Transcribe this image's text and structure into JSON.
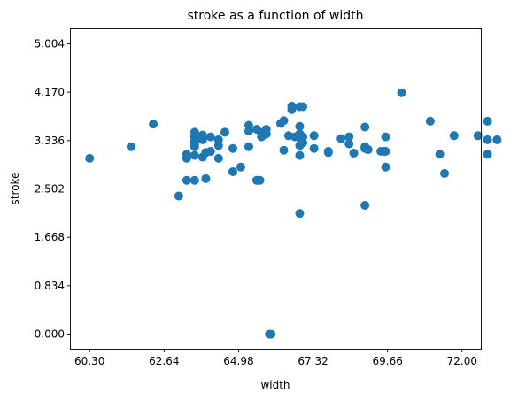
{
  "chart_data": {
    "type": "scatter",
    "title": "stroke as a function of width",
    "xlabel": "width",
    "ylabel": "stroke",
    "xlim": [
      59.71,
      72.59
    ],
    "ylim": [
      -0.2502,
      5.2542
    ],
    "xticks": [
      60.3,
      62.64,
      64.98,
      67.32,
      69.66,
      72.0
    ],
    "xtick_labels": [
      "60.30",
      "62.64",
      "64.98",
      "67.32",
      "69.66",
      "72.00"
    ],
    "yticks": [
      0.0,
      0.834,
      1.668,
      2.502,
      3.336,
      4.17,
      5.004
    ],
    "ytick_labels": [
      "0.000",
      "0.834",
      "1.668",
      "2.502",
      "3.336",
      "4.170",
      "5.004"
    ],
    "grid": false,
    "marker_color": "#1f77b4",
    "points": [
      [
        60.3,
        3.03
      ],
      [
        61.6,
        3.23
      ],
      [
        62.3,
        3.62
      ],
      [
        63.1,
        2.38
      ],
      [
        63.35,
        3.1
      ],
      [
        63.35,
        3.03
      ],
      [
        63.35,
        2.65
      ],
      [
        63.6,
        3.48
      ],
      [
        63.6,
        3.4
      ],
      [
        63.6,
        3.33
      ],
      [
        63.6,
        3.28
      ],
      [
        63.6,
        3.23
      ],
      [
        63.6,
        3.08
      ],
      [
        63.6,
        2.65
      ],
      [
        63.85,
        3.43
      ],
      [
        63.85,
        3.35
      ],
      [
        63.85,
        3.05
      ],
      [
        63.95,
        3.13
      ],
      [
        63.95,
        2.68
      ],
      [
        64.1,
        3.4
      ],
      [
        64.1,
        3.15
      ],
      [
        64.35,
        3.35
      ],
      [
        64.35,
        3.25
      ],
      [
        64.35,
        3.03
      ],
      [
        64.55,
        3.48
      ],
      [
        64.8,
        3.2
      ],
      [
        64.8,
        2.8
      ],
      [
        65.05,
        2.88
      ],
      [
        65.3,
        3.6
      ],
      [
        65.3,
        3.5
      ],
      [
        65.3,
        3.23
      ],
      [
        65.55,
        3.53
      ],
      [
        65.55,
        2.65
      ],
      [
        65.6,
        2.65
      ],
      [
        65.65,
        2.65
      ],
      [
        65.7,
        3.47
      ],
      [
        65.7,
        3.4
      ],
      [
        65.85,
        3.53
      ],
      [
        65.85,
        3.45
      ],
      [
        65.95,
        0.0
      ],
      [
        66.0,
        0.0
      ],
      [
        66.3,
        3.63
      ],
      [
        66.4,
        3.68
      ],
      [
        66.4,
        3.17
      ],
      [
        66.55,
        3.42
      ],
      [
        66.65,
        3.87
      ],
      [
        66.65,
        3.93
      ],
      [
        66.75,
        3.4
      ],
      [
        66.9,
        3.92
      ],
      [
        66.9,
        3.58
      ],
      [
        66.9,
        3.45
      ],
      [
        66.9,
        3.38
      ],
      [
        66.9,
        3.25
      ],
      [
        66.9,
        3.08
      ],
      [
        66.9,
        2.08
      ],
      [
        67.0,
        3.92
      ],
      [
        67.0,
        3.4
      ],
      [
        67.0,
        3.3
      ],
      [
        67.35,
        3.42
      ],
      [
        67.35,
        3.2
      ],
      [
        67.8,
        3.15
      ],
      [
        67.8,
        3.13
      ],
      [
        68.2,
        3.37
      ],
      [
        68.45,
        3.4
      ],
      [
        68.45,
        3.28
      ],
      [
        68.6,
        3.12
      ],
      [
        68.95,
        3.23
      ],
      [
        68.95,
        3.57
      ],
      [
        68.95,
        3.2
      ],
      [
        68.95,
        2.22
      ],
      [
        69.05,
        3.18
      ],
      [
        69.45,
        3.15
      ],
      [
        69.55,
        3.15
      ],
      [
        69.6,
        3.4
      ],
      [
        69.6,
        3.15
      ],
      [
        69.6,
        2.88
      ],
      [
        70.1,
        4.16
      ],
      [
        71.0,
        3.67
      ],
      [
        71.3,
        3.1
      ],
      [
        71.45,
        2.77
      ],
      [
        71.75,
        3.42
      ],
      [
        72.5,
        3.42
      ],
      [
        72.8,
        3.67
      ],
      [
        72.8,
        3.35
      ],
      [
        72.8,
        3.1
      ],
      [
        73.1,
        3.35
      ]
    ]
  }
}
